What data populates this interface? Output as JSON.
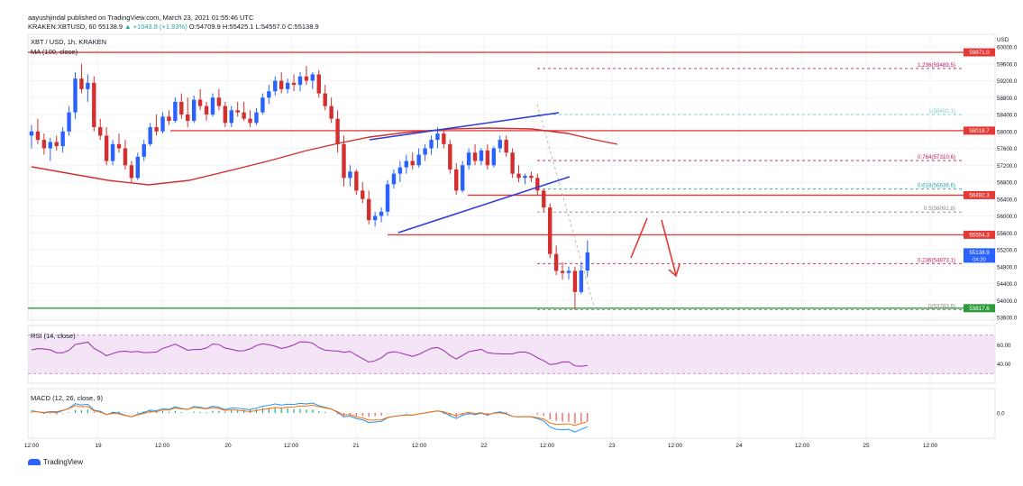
{
  "header": {
    "line1": "aayushjindal published on TradingView.com, March 23, 2021 01:55:46 UTC",
    "line2_prefix": "KRAKEN:XBTUSD, 60 55138.9 ",
    "line2_change": "▲ +1043.8 (+1.93%)",
    "line2_ohlc": " O:54709.9 H:55425.1 L:54557.0 C:55138.9"
  },
  "symbol_label": "XBT / USD, 1h, KRAKEN",
  "ma_label": "MA (100, close)",
  "rsi_label": "RSI (14, close)",
  "macd_label": "MACD (12, 26, close, 9)",
  "footer": {
    "brand": "TradingView"
  },
  "colors": {
    "up": "#26a69a",
    "down": "#ef5350",
    "candle_up": "#2962ff",
    "candle_down": "#d32f2f",
    "ma": "#d32f2f",
    "trendline": "#2f3ed6",
    "level": "#e53935",
    "support": "#2e9c3b",
    "fib": "#c2185b",
    "rsi": "#9c27b0",
    "rsi_band": "#f3e5f5"
  },
  "chart_data": {
    "type": "candlestick",
    "currency": "USD",
    "yticks": [
      "60000.0",
      "59600.0",
      "59200.0",
      "58800.0",
      "58400.0",
      "58000.0",
      "57600.0",
      "57200.0",
      "56800.0",
      "56400.0",
      "56000.0",
      "55600.0",
      "55200.0",
      "54800.0",
      "54400.0",
      "54000.0",
      "53600.0"
    ],
    "xticks": [
      "12:00",
      "19",
      "12:00",
      "20",
      "12:00",
      "21",
      "12:00",
      "22",
      "12:00",
      "23",
      "12:00",
      "24",
      "12:00",
      "25",
      "12:00"
    ],
    "price_badges": [
      {
        "label": "59871.0",
        "color": "#e53935"
      },
      {
        "label": "58018.7",
        "color": "#e53935"
      },
      {
        "label": "56492.3",
        "color": "#e53935"
      },
      {
        "label": "55554.3",
        "color": "#e53935"
      },
      {
        "label": "55138.9",
        "sub": "04:20",
        "color": "#2962ff"
      },
      {
        "label": "53817.6",
        "color": "#2e9c3b"
      }
    ],
    "fib_levels": [
      {
        "label": "1.236(59489.5)"
      },
      {
        "label": "1(58400.1)"
      },
      {
        "label": "0.764(57310.6)"
      },
      {
        "label": "0.618(56636.6)"
      },
      {
        "label": "0.5(56091.8)"
      },
      {
        "label": "0.236(54873.1)"
      },
      {
        "label": "0(53783.6)"
      }
    ],
    "candles": [
      {
        "o": 57900,
        "h": 58150,
        "l": 57600,
        "c": 58000
      },
      {
        "o": 58000,
        "h": 58300,
        "l": 57700,
        "c": 57800
      },
      {
        "o": 57800,
        "h": 57950,
        "l": 57450,
        "c": 57600
      },
      {
        "o": 57600,
        "h": 57850,
        "l": 57300,
        "c": 57750
      },
      {
        "o": 57750,
        "h": 57900,
        "l": 57550,
        "c": 57650
      },
      {
        "o": 57650,
        "h": 58100,
        "l": 57500,
        "c": 58000
      },
      {
        "o": 58000,
        "h": 58600,
        "l": 57900,
        "c": 58450
      },
      {
        "o": 58450,
        "h": 59400,
        "l": 58300,
        "c": 59250
      },
      {
        "o": 59250,
        "h": 59600,
        "l": 58900,
        "c": 59000
      },
      {
        "o": 59000,
        "h": 59350,
        "l": 58700,
        "c": 59150
      },
      {
        "o": 59150,
        "h": 59300,
        "l": 58000,
        "c": 58100
      },
      {
        "o": 58100,
        "h": 58300,
        "l": 57800,
        "c": 57900
      },
      {
        "o": 57900,
        "h": 58100,
        "l": 57200,
        "c": 57300
      },
      {
        "o": 57300,
        "h": 57800,
        "l": 57200,
        "c": 57700
      },
      {
        "o": 57700,
        "h": 57950,
        "l": 57500,
        "c": 57600
      },
      {
        "o": 57600,
        "h": 57800,
        "l": 57100,
        "c": 57200
      },
      {
        "o": 57200,
        "h": 57300,
        "l": 56800,
        "c": 56900
      },
      {
        "o": 56900,
        "h": 57500,
        "l": 56850,
        "c": 57400
      },
      {
        "o": 57400,
        "h": 57800,
        "l": 57300,
        "c": 57700
      },
      {
        "o": 57700,
        "h": 58200,
        "l": 57650,
        "c": 58100
      },
      {
        "o": 58100,
        "h": 58400,
        "l": 57900,
        "c": 58000
      },
      {
        "o": 58000,
        "h": 58450,
        "l": 57950,
        "c": 58350
      },
      {
        "o": 58350,
        "h": 58500,
        "l": 58150,
        "c": 58250
      },
      {
        "o": 58250,
        "h": 58800,
        "l": 58200,
        "c": 58700
      },
      {
        "o": 58700,
        "h": 58900,
        "l": 58300,
        "c": 58400
      },
      {
        "o": 58400,
        "h": 58800,
        "l": 58100,
        "c": 58250
      },
      {
        "o": 58250,
        "h": 58850,
        "l": 58200,
        "c": 58750
      },
      {
        "o": 58750,
        "h": 59000,
        "l": 58500,
        "c": 58600
      },
      {
        "o": 58600,
        "h": 58700,
        "l": 58250,
        "c": 58400
      },
      {
        "o": 58400,
        "h": 58900,
        "l": 58350,
        "c": 58800
      },
      {
        "o": 58800,
        "h": 59000,
        "l": 58500,
        "c": 58600
      },
      {
        "o": 58600,
        "h": 58700,
        "l": 58100,
        "c": 58200
      },
      {
        "o": 58200,
        "h": 58600,
        "l": 58100,
        "c": 58500
      },
      {
        "o": 58500,
        "h": 58700,
        "l": 58350,
        "c": 58450
      },
      {
        "o": 58450,
        "h": 58700,
        "l": 58250,
        "c": 58300
      },
      {
        "o": 58300,
        "h": 58500,
        "l": 58100,
        "c": 58200
      },
      {
        "o": 58200,
        "h": 58550,
        "l": 58150,
        "c": 58450
      },
      {
        "o": 58450,
        "h": 58900,
        "l": 58400,
        "c": 58800
      },
      {
        "o": 58800,
        "h": 59100,
        "l": 58650,
        "c": 58950
      },
      {
        "o": 58950,
        "h": 59300,
        "l": 58850,
        "c": 59200
      },
      {
        "o": 59200,
        "h": 59400,
        "l": 58900,
        "c": 59000
      },
      {
        "o": 59000,
        "h": 59250,
        "l": 58900,
        "c": 59150
      },
      {
        "o": 59150,
        "h": 59350,
        "l": 58950,
        "c": 59100
      },
      {
        "o": 59100,
        "h": 59400,
        "l": 58950,
        "c": 59300
      },
      {
        "o": 59300,
        "h": 59550,
        "l": 59100,
        "c": 59200
      },
      {
        "o": 59200,
        "h": 59400,
        "l": 59000,
        "c": 59350
      },
      {
        "o": 59350,
        "h": 59450,
        "l": 58800,
        "c": 58900
      },
      {
        "o": 58900,
        "h": 59100,
        "l": 58500,
        "c": 58600
      },
      {
        "o": 58600,
        "h": 58800,
        "l": 58200,
        "c": 58300
      },
      {
        "o": 58300,
        "h": 58500,
        "l": 57500,
        "c": 57700
      },
      {
        "o": 57700,
        "h": 57900,
        "l": 56700,
        "c": 56900
      },
      {
        "o": 56900,
        "h": 57200,
        "l": 56700,
        "c": 57050
      },
      {
        "o": 57050,
        "h": 57100,
        "l": 56500,
        "c": 56600
      },
      {
        "o": 56600,
        "h": 56800,
        "l": 56300,
        "c": 56400
      },
      {
        "o": 56400,
        "h": 56600,
        "l": 55800,
        "c": 55900
      },
      {
        "o": 55900,
        "h": 56100,
        "l": 55750,
        "c": 56000
      },
      {
        "o": 56000,
        "h": 56200,
        "l": 55850,
        "c": 56100
      },
      {
        "o": 56100,
        "h": 56850,
        "l": 56000,
        "c": 56750
      },
      {
        "o": 56750,
        "h": 57100,
        "l": 56650,
        "c": 57000
      },
      {
        "o": 57000,
        "h": 57300,
        "l": 56800,
        "c": 57150
      },
      {
        "o": 57150,
        "h": 57450,
        "l": 57000,
        "c": 57300
      },
      {
        "o": 57300,
        "h": 57500,
        "l": 57100,
        "c": 57200
      },
      {
        "o": 57200,
        "h": 57600,
        "l": 57150,
        "c": 57450
      },
      {
        "o": 57450,
        "h": 57700,
        "l": 57300,
        "c": 57600
      },
      {
        "o": 57600,
        "h": 57900,
        "l": 57450,
        "c": 57800
      },
      {
        "o": 57800,
        "h": 58100,
        "l": 57600,
        "c": 57950
      },
      {
        "o": 57950,
        "h": 58050,
        "l": 57600,
        "c": 57700
      },
      {
        "o": 57700,
        "h": 57800,
        "l": 57000,
        "c": 57100
      },
      {
        "o": 57100,
        "h": 57250,
        "l": 56500,
        "c": 56600
      },
      {
        "o": 56600,
        "h": 57300,
        "l": 56550,
        "c": 57200
      },
      {
        "o": 57200,
        "h": 57600,
        "l": 57100,
        "c": 57500
      },
      {
        "o": 57500,
        "h": 57700,
        "l": 57200,
        "c": 57300
      },
      {
        "o": 57300,
        "h": 57600,
        "l": 57200,
        "c": 57550
      },
      {
        "o": 57550,
        "h": 57700,
        "l": 57100,
        "c": 57200
      },
      {
        "o": 57200,
        "h": 57650,
        "l": 57150,
        "c": 57600
      },
      {
        "o": 57600,
        "h": 57900,
        "l": 57500,
        "c": 57800
      },
      {
        "o": 57800,
        "h": 57900,
        "l": 57400,
        "c": 57500
      },
      {
        "o": 57500,
        "h": 57600,
        "l": 56900,
        "c": 57000
      },
      {
        "o": 57000,
        "h": 57200,
        "l": 56800,
        "c": 56900
      },
      {
        "o": 56900,
        "h": 57000,
        "l": 56750,
        "c": 56950
      },
      {
        "o": 56950,
        "h": 57050,
        "l": 56800,
        "c": 56900
      },
      {
        "o": 56900,
        "h": 57000,
        "l": 56500,
        "c": 56600
      },
      {
        "o": 56600,
        "h": 56650,
        "l": 56100,
        "c": 56200
      },
      {
        "o": 56200,
        "h": 56300,
        "l": 55000,
        "c": 55100
      },
      {
        "o": 55100,
        "h": 55300,
        "l": 54600,
        "c": 54700
      },
      {
        "o": 54700,
        "h": 54900,
        "l": 54500,
        "c": 54650
      },
      {
        "o": 54650,
        "h": 54800,
        "l": 54500,
        "c": 54700
      },
      {
        "o": 54700,
        "h": 54800,
        "l": 53783,
        "c": 54200
      },
      {
        "o": 54200,
        "h": 54900,
        "l": 54150,
        "c": 54709
      },
      {
        "o": 54709,
        "h": 55425,
        "l": 54557,
        "c": 55139
      }
    ]
  }
}
